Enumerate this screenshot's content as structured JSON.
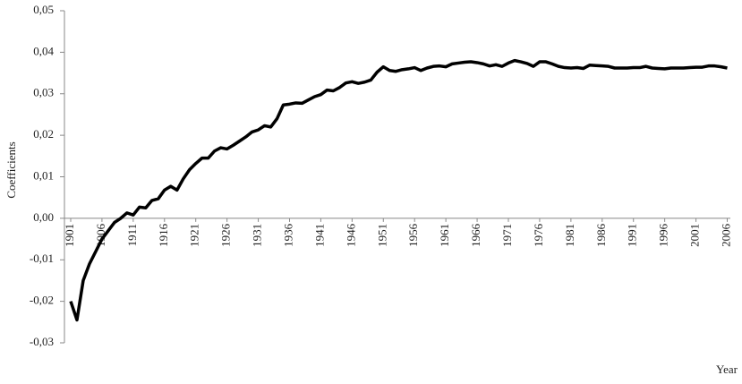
{
  "chart_data": {
    "type": "line",
    "y_label": "Coefficients",
    "x_label": "Year",
    "x": [
      1901,
      1902,
      1903,
      1904,
      1905,
      1906,
      1907,
      1908,
      1909,
      1910,
      1911,
      1912,
      1913,
      1914,
      1915,
      1916,
      1917,
      1918,
      1919,
      1920,
      1921,
      1922,
      1923,
      1924,
      1925,
      1926,
      1927,
      1928,
      1929,
      1930,
      1931,
      1932,
      1933,
      1934,
      1935,
      1936,
      1937,
      1938,
      1939,
      1940,
      1941,
      1942,
      1943,
      1944,
      1945,
      1946,
      1947,
      1948,
      1949,
      1950,
      1951,
      1952,
      1953,
      1954,
      1955,
      1956,
      1957,
      1958,
      1959,
      1960,
      1961,
      1962,
      1963,
      1964,
      1965,
      1966,
      1967,
      1968,
      1969,
      1970,
      1971,
      1972,
      1973,
      1974,
      1975,
      1976,
      1977,
      1978,
      1979,
      1980,
      1981,
      1982,
      1983,
      1984,
      1985,
      1986,
      1987,
      1988,
      1989,
      1990,
      1991,
      1992,
      1993,
      1994,
      1995,
      1996,
      1997,
      1998,
      1999,
      2000,
      2001,
      2002,
      2003,
      2004,
      2005,
      2006
    ],
    "values": [
      -0.02,
      -0.0245,
      -0.015,
      -0.011,
      -0.008,
      -0.005,
      -0.003,
      -0.001,
      0.0,
      0.0013,
      0.0008,
      0.0027,
      0.0025,
      0.0043,
      0.0047,
      0.0068,
      0.0077,
      0.0068,
      0.0095,
      0.0117,
      0.0132,
      0.0145,
      0.0145,
      0.0162,
      0.017,
      0.0167,
      0.0176,
      0.0186,
      0.0196,
      0.0208,
      0.0213,
      0.0223,
      0.022,
      0.024,
      0.0273,
      0.0275,
      0.0278,
      0.0277,
      0.0285,
      0.0293,
      0.0298,
      0.0309,
      0.0307,
      0.0315,
      0.0326,
      0.0329,
      0.0325,
      0.0328,
      0.0333,
      0.0352,
      0.0365,
      0.0356,
      0.0354,
      0.0358,
      0.036,
      0.0363,
      0.0356,
      0.0362,
      0.0366,
      0.0367,
      0.0365,
      0.0372,
      0.0374,
      0.0376,
      0.0377,
      0.0375,
      0.0372,
      0.0367,
      0.037,
      0.0366,
      0.0374,
      0.038,
      0.0377,
      0.0373,
      0.0366,
      0.0377,
      0.0377,
      0.0372,
      0.0366,
      0.0363,
      0.0362,
      0.0363,
      0.0361,
      0.0369,
      0.0368,
      0.0367,
      0.0366,
      0.0362,
      0.0362,
      0.0362,
      0.0363,
      0.0363,
      0.0366,
      0.0362,
      0.0361,
      0.036,
      0.0362,
      0.0362,
      0.0362,
      0.0363,
      0.0364,
      0.0364,
      0.0367,
      0.0367,
      0.0365,
      0.0362
    ],
    "color": "#000000",
    "xlim": [
      1900,
      2006.5
    ],
    "xticks": [
      1901,
      1906,
      1911,
      1916,
      1921,
      1926,
      1931,
      1936,
      1941,
      1946,
      1951,
      1956,
      1961,
      1966,
      1971,
      1976,
      1981,
      1986,
      1991,
      1996,
      2001,
      2006
    ],
    "ylim": [
      -0.03,
      0.05
    ],
    "yticks": [
      {
        "value": -0.03,
        "label": "-0,03"
      },
      {
        "value": -0.02,
        "label": "-0,02"
      },
      {
        "value": -0.01,
        "label": "-0,01"
      },
      {
        "value": 0,
        "label": "0,00"
      },
      {
        "value": 0.01,
        "label": "0,01"
      },
      {
        "value": 0.02,
        "label": "0,02"
      },
      {
        "value": 0.03,
        "label": "0,03"
      },
      {
        "value": 0.04,
        "label": "0,04"
      },
      {
        "value": 0.05,
        "label": "0,05"
      }
    ]
  }
}
